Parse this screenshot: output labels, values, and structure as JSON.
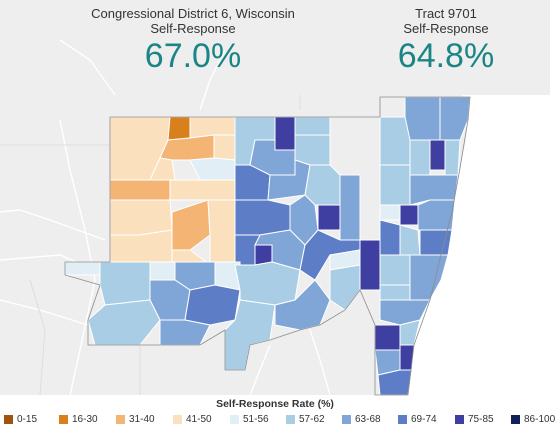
{
  "stats": {
    "district": {
      "name": "Congressional District 6, Wisconsin",
      "subtitle": "Self-Response",
      "value": "67.0%"
    },
    "tract": {
      "name": "Tract 9701",
      "subtitle": "Self-Response",
      "value": "64.8%"
    }
  },
  "legend": {
    "title": "Self-Response Rate (%)",
    "items": [
      {
        "label": "0-15",
        "color": "#a0520e"
      },
      {
        "label": "16-30",
        "color": "#d9801d"
      },
      {
        "label": "31-40",
        "color": "#f4b574"
      },
      {
        "label": "41-50",
        "color": "#fbe0bd"
      },
      {
        "label": "51-56",
        "color": "#e1eef5"
      },
      {
        "label": "57-62",
        "color": "#a9cde4"
      },
      {
        "label": "63-68",
        "color": "#7fa6d6"
      },
      {
        "label": "69-74",
        "color": "#5d7ec6"
      },
      {
        "label": "75-85",
        "color": "#3e3fa1"
      },
      {
        "label": "86-100",
        "color": "#10205a"
      }
    ]
  },
  "map": {
    "background_color": "#eeeeee",
    "water_color": "#ffffff",
    "road_color": "#ffffff"
  }
}
